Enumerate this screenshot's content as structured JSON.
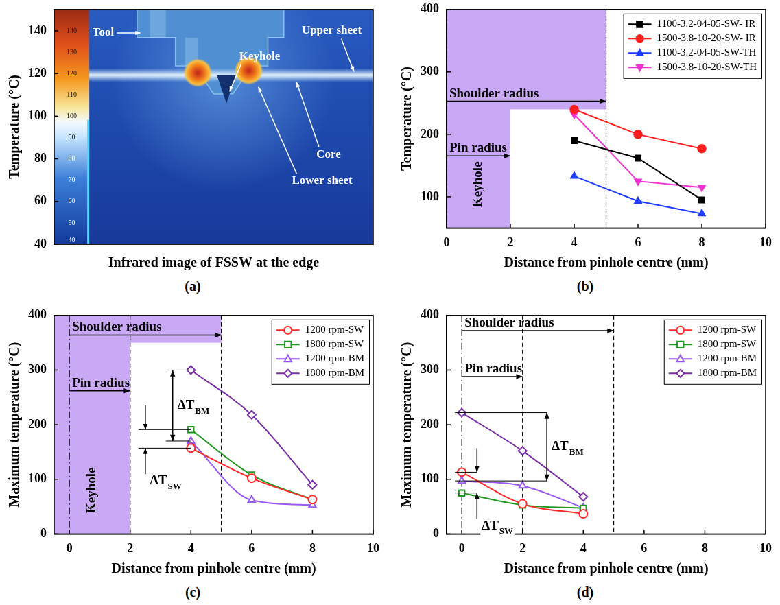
{
  "chart_data": [
    {
      "type": "image",
      "panel": "(a)",
      "x_label": "Infrared image of FSSW at the edge",
      "y_label": "Temperature (°C)",
      "ylim": [
        40,
        150
      ],
      "yticks": [
        40,
        60,
        80,
        100,
        120,
        140
      ],
      "tick_labels": "y",
      "grid": false,
      "colorbar": {
        "range": [
          40,
          150
        ],
        "ticks": [
          40,
          50,
          60,
          70,
          80,
          90,
          100,
          110,
          120,
          130,
          140
        ]
      },
      "annotations": [
        "Tool",
        "Upper sheet",
        "Keyhole",
        "Core",
        "Lower sheet"
      ]
    },
    {
      "type": "line",
      "panel": "(b)",
      "x_label": "Distance from pinhole centre (mm)",
      "y_label": "Temperature (°C)",
      "xlim": [
        0,
        10
      ],
      "xticks": [
        0,
        2,
        4,
        6,
        8,
        10
      ],
      "ylim": [
        50,
        400
      ],
      "yticks": [
        100,
        200,
        300,
        400
      ],
      "grid": false,
      "legend": "upper right",
      "line_style": "solid",
      "x": [
        4,
        6,
        8
      ],
      "series": [
        {
          "name": "1100-3.2-04-05-SW- IR",
          "color": "#000000",
          "marker": "square",
          "values": [
            190,
            162,
            95
          ]
        },
        {
          "name": "1500-3.8-10-20-SW- IR",
          "color": "#ff1f1f",
          "marker": "circle",
          "values": [
            240,
            200,
            177
          ]
        },
        {
          "name": "1100-3.2-04-05-SW-TH",
          "color": "#1f3cff",
          "marker": "triangle",
          "values": [
            133,
            93,
            73
          ]
        },
        {
          "name": "1500-3.8-10-20-SW-TH",
          "color": "#f032d2",
          "marker": "triangle-down",
          "values": [
            232,
            125,
            115
          ]
        }
      ],
      "regions": [
        {
          "x": [
            0,
            2
          ],
          "y": [
            50,
            400
          ],
          "color": "#c9a8f5"
        },
        {
          "x": [
            0,
            5
          ],
          "y": [
            240,
            400
          ],
          "color": "#c9a8f5"
        }
      ],
      "reference_lines": [
        {
          "x": 0,
          "line_style": "dashdot"
        },
        {
          "x": 5,
          "line_style": "dashed"
        }
      ],
      "arrows": [
        {
          "label": "Shoulder radius",
          "x": [
            0,
            5
          ]
        },
        {
          "label": "Pin radius",
          "x": [
            0,
            2
          ]
        }
      ],
      "region_label": "Keyhole"
    },
    {
      "type": "line",
      "panel": "(c)",
      "x_label": "Distance from pinhole centre (mm)",
      "y_label": "Maximum temperature (°C)",
      "xlim": [
        -0.5,
        10
      ],
      "xticks": [
        0,
        2,
        4,
        6,
        8,
        10
      ],
      "ylim": [
        0,
        400
      ],
      "yticks": [
        0,
        100,
        200,
        300,
        400
      ],
      "grid": false,
      "legend": "upper right",
      "line_style": "smooth",
      "x": [
        4,
        6,
        8
      ],
      "series": [
        {
          "name": "1200 rpm-SW",
          "color": "#ff2a2a",
          "marker": "open-circle",
          "values": [
            157,
            102,
            63
          ]
        },
        {
          "name": "1800 rpm-SW",
          "color": "#1f9a1f",
          "marker": "open-square",
          "values": [
            191,
            108,
            63
          ]
        },
        {
          "name": "1200 rpm-BM",
          "color": "#9b59f5",
          "marker": "open-triangle",
          "values": [
            170,
            62,
            53
          ]
        },
        {
          "name": "1800 rpm-BM",
          "color": "#7b2fa8",
          "marker": "open-diamond",
          "values": [
            300,
            218,
            90
          ]
        }
      ],
      "regions": [
        {
          "x": [
            -0.5,
            2
          ],
          "y": [
            0,
            400
          ],
          "color": "#c9a8f5"
        },
        {
          "x": [
            -0.5,
            5
          ],
          "y": [
            350,
            400
          ],
          "color": "#c9a8f5"
        }
      ],
      "reference_lines": [
        {
          "x": 0,
          "line_style": "dashdot"
        },
        {
          "x": 2,
          "line_style": "dashed"
        },
        {
          "x": 5,
          "line_style": "dashed"
        }
      ],
      "arrows": [
        {
          "label": "Shoulder radius",
          "x": [
            0,
            5
          ]
        },
        {
          "label": "Pin radius",
          "x": [
            0,
            2
          ]
        }
      ],
      "region_label": "Keyhole",
      "deltas": [
        {
          "label": "ΔT",
          "subscript": "BM",
          "x": 4,
          "between": [
            "1800 rpm-BM",
            "1200 rpm-BM"
          ]
        },
        {
          "label": "ΔT",
          "subscript": "SW",
          "x": 4,
          "between": [
            "1800 rpm-SW",
            "1200 rpm-SW"
          ]
        }
      ]
    },
    {
      "type": "line",
      "panel": "(d)",
      "x_label": "Distance from pinhole centre (mm)",
      "y_label": "Maximum temperature (°C)",
      "xlim": [
        -0.5,
        10
      ],
      "xticks": [
        0,
        2,
        4,
        6,
        8,
        10
      ],
      "ylim": [
        0,
        400
      ],
      "yticks": [
        0,
        100,
        200,
        300,
        400
      ],
      "grid": false,
      "legend": "upper right",
      "line_style": "smooth",
      "x": [
        0,
        2,
        4
      ],
      "series": [
        {
          "name": "1200 rpm-SW",
          "color": "#ff2a2a",
          "marker": "open-circle",
          "values": [
            113,
            55,
            37
          ]
        },
        {
          "name": "1800 rpm-SW",
          "color": "#1f9a1f",
          "marker": "open-square",
          "values": [
            75,
            53,
            47
          ]
        },
        {
          "name": "1200 rpm-BM",
          "color": "#9b59f5",
          "marker": "open-triangle",
          "values": [
            97,
            88,
            48
          ]
        },
        {
          "name": "1800 rpm-BM",
          "color": "#7b2fa8",
          "marker": "open-diamond",
          "values": [
            222,
            152,
            68
          ]
        }
      ],
      "reference_lines": [
        {
          "x": 0,
          "line_style": "dashdot"
        },
        {
          "x": 2,
          "line_style": "dashed"
        },
        {
          "x": 5,
          "line_style": "dashed"
        }
      ],
      "arrows": [
        {
          "label": "Shoulder radius",
          "x": [
            0,
            5
          ]
        },
        {
          "label": "Pin radius",
          "x": [
            0,
            2
          ]
        }
      ],
      "deltas": [
        {
          "label": "ΔT",
          "subscript": "BM",
          "x": 0,
          "between": [
            "1800 rpm-BM",
            "1200 rpm-BM"
          ]
        },
        {
          "label": "ΔT",
          "subscript": "SW",
          "x": 0,
          "between": [
            "1800 rpm-SW",
            "1200 rpm-SW"
          ]
        }
      ]
    }
  ]
}
